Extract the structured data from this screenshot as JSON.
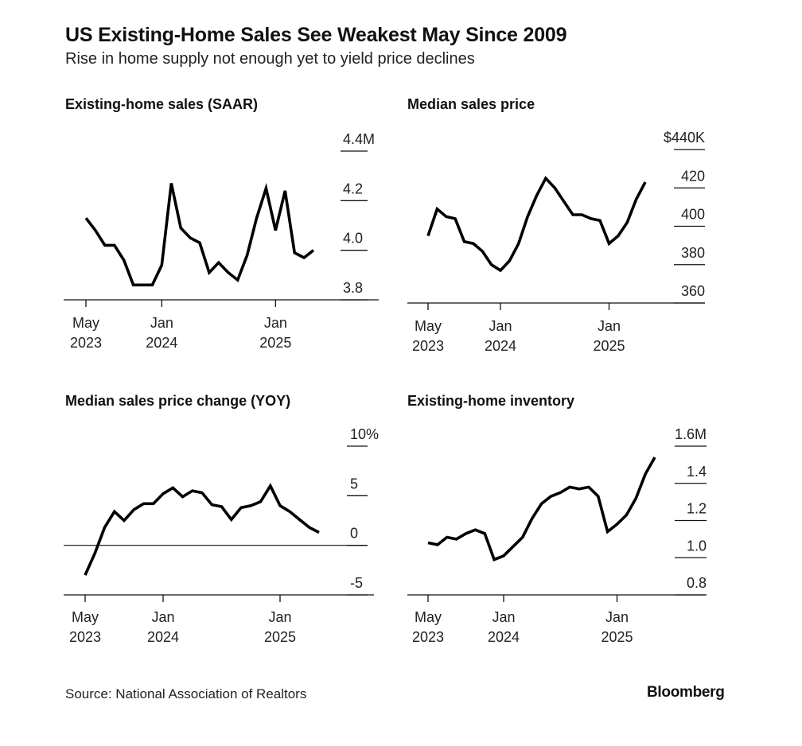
{
  "title": "US Existing-Home Sales See Weakest May Since 2009",
  "subtitle": "Rise in home supply not enough yet to yield price declines",
  "source": "Source: National Association of Realtors",
  "brand": "Bloomberg",
  "colors": {
    "line": "#000000",
    "axis": "#111111",
    "text": "#222222"
  },
  "chart_data": [
    {
      "id": "sales",
      "type": "line",
      "title": "Existing-home sales (SAAR)",
      "x": [
        "2023-05",
        "2023-06",
        "2023-07",
        "2023-08",
        "2023-09",
        "2023-10",
        "2023-11",
        "2023-12",
        "2024-01",
        "2024-02",
        "2024-03",
        "2024-04",
        "2024-05",
        "2024-06",
        "2024-07",
        "2024-08",
        "2024-09",
        "2024-10",
        "2024-11",
        "2024-12",
        "2025-01",
        "2025-02",
        "2025-03",
        "2025-04",
        "2025-05"
      ],
      "series": [
        {
          "values": [
            4.13,
            4.08,
            4.02,
            4.02,
            3.96,
            3.86,
            3.86,
            3.86,
            3.94,
            4.27,
            4.09,
            4.05,
            4.03,
            3.91,
            3.95,
            3.91,
            3.88,
            3.98,
            4.13,
            4.25,
            4.08,
            4.24,
            3.99,
            3.97,
            4.0
          ]
        }
      ],
      "ylim": [
        3.8,
        4.4
      ],
      "yticks": [
        {
          "value": 4.4,
          "label": "4.4M"
        },
        {
          "value": 4.2,
          "label": "4.2"
        },
        {
          "value": 4.0,
          "label": "4.0"
        },
        {
          "value": 3.8,
          "label": "3.8"
        }
      ],
      "xticks": [
        {
          "at": "2023-05",
          "label1": "May",
          "label2": "2023"
        },
        {
          "at": "2024-01",
          "label1": "Jan",
          "label2": "2024"
        },
        {
          "at": "2025-01",
          "label1": "Jan",
          "label2": "2025"
        }
      ],
      "grid": false,
      "legend": "none"
    },
    {
      "id": "price",
      "type": "line",
      "title": "Median sales price",
      "x": [
        "2023-05",
        "2023-06",
        "2023-07",
        "2023-08",
        "2023-09",
        "2023-10",
        "2023-11",
        "2023-12",
        "2024-01",
        "2024-02",
        "2024-03",
        "2024-04",
        "2024-05",
        "2024-06",
        "2024-07",
        "2024-08",
        "2024-09",
        "2024-10",
        "2024-11",
        "2024-12",
        "2025-01",
        "2025-02",
        "2025-03",
        "2025-04",
        "2025-05"
      ],
      "series": [
        {
          "values": [
            395,
            409,
            405,
            404,
            392,
            391,
            387,
            380,
            377,
            382,
            391,
            405,
            416,
            425,
            420,
            413,
            406,
            406,
            404,
            403,
            391,
            395,
            402,
            414,
            423
          ]
        }
      ],
      "ylim": [
        360,
        440
      ],
      "yticks": [
        {
          "value": 440,
          "label": "$440K"
        },
        {
          "value": 420,
          "label": "420"
        },
        {
          "value": 400,
          "label": "400"
        },
        {
          "value": 380,
          "label": "380"
        },
        {
          "value": 360,
          "label": "360"
        }
      ],
      "xticks": [
        {
          "at": "2023-05",
          "label1": "May",
          "label2": "2023"
        },
        {
          "at": "2024-01",
          "label1": "Jan",
          "label2": "2024"
        },
        {
          "at": "2025-01",
          "label1": "Jan",
          "label2": "2025"
        }
      ],
      "grid": false,
      "legend": "none"
    },
    {
      "id": "yoy",
      "type": "line",
      "title": "Median sales price change (YOY)",
      "x": [
        "2023-05",
        "2023-06",
        "2023-07",
        "2023-08",
        "2023-09",
        "2023-10",
        "2023-11",
        "2023-12",
        "2024-01",
        "2024-02",
        "2024-03",
        "2024-04",
        "2024-05",
        "2024-06",
        "2024-07",
        "2024-08",
        "2024-09",
        "2024-10",
        "2024-11",
        "2024-12",
        "2025-01",
        "2025-02",
        "2025-03",
        "2025-04",
        "2025-05"
      ],
      "series": [
        {
          "values": [
            -3.0,
            -0.8,
            1.8,
            3.4,
            2.5,
            3.6,
            4.2,
            4.2,
            5.2,
            5.8,
            4.9,
            5.5,
            5.3,
            4.1,
            3.9,
            2.6,
            3.8,
            4.0,
            4.4,
            6.0,
            4.0,
            3.4,
            2.6,
            1.8,
            1.3
          ]
        }
      ],
      "ylim": [
        -5,
        10
      ],
      "yticks": [
        {
          "value": 10,
          "label": "10%"
        },
        {
          "value": 5,
          "label": "5"
        },
        {
          "value": 0,
          "label": "0"
        },
        {
          "value": -5,
          "label": "-5"
        }
      ],
      "baseline": 0,
      "xticks": [
        {
          "at": "2023-05",
          "label1": "May",
          "label2": "2023"
        },
        {
          "at": "2024-01",
          "label1": "Jan",
          "label2": "2024"
        },
        {
          "at": "2025-01",
          "label1": "Jan",
          "label2": "2025"
        }
      ],
      "grid": false,
      "legend": "none"
    },
    {
      "id": "inventory",
      "type": "line",
      "title": "Existing-home inventory",
      "x": [
        "2023-05",
        "2023-06",
        "2023-07",
        "2023-08",
        "2023-09",
        "2023-10",
        "2023-11",
        "2023-12",
        "2024-01",
        "2024-02",
        "2024-03",
        "2024-04",
        "2024-05",
        "2024-06",
        "2024-07",
        "2024-08",
        "2024-09",
        "2024-10",
        "2024-11",
        "2024-12",
        "2025-01",
        "2025-02",
        "2025-03",
        "2025-04",
        "2025-05"
      ],
      "series": [
        {
          "values": [
            1.08,
            1.07,
            1.11,
            1.1,
            1.13,
            1.15,
            1.13,
            0.99,
            1.01,
            1.06,
            1.11,
            1.21,
            1.29,
            1.33,
            1.35,
            1.38,
            1.37,
            1.38,
            1.33,
            1.14,
            1.18,
            1.23,
            1.32,
            1.45,
            1.54
          ]
        }
      ],
      "ylim": [
        0.8,
        1.6
      ],
      "yticks": [
        {
          "value": 1.6,
          "label": "1.6M"
        },
        {
          "value": 1.4,
          "label": "1.4"
        },
        {
          "value": 1.2,
          "label": "1.2"
        },
        {
          "value": 1.0,
          "label": "1.0"
        },
        {
          "value": 0.8,
          "label": "0.8"
        }
      ],
      "xticks": [
        {
          "at": "2023-05",
          "label1": "May",
          "label2": "2023"
        },
        {
          "at": "2024-01",
          "label1": "Jan",
          "label2": "2024"
        },
        {
          "at": "2025-01",
          "label1": "Jan",
          "label2": "2025"
        }
      ],
      "grid": false,
      "legend": "none"
    }
  ]
}
